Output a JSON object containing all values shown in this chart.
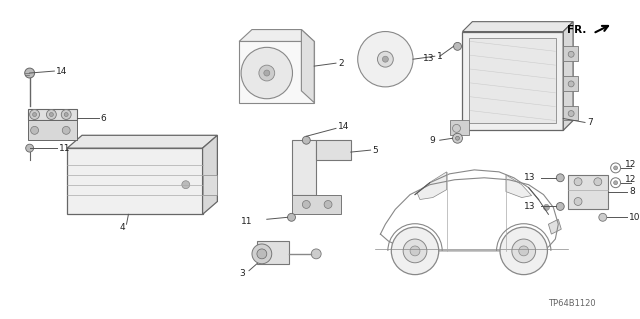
{
  "background_color": "#f5f5f0",
  "diagram_code": "TP64B1120",
  "line_color": "#555555",
  "dark_color": "#333333",
  "gray_color": "#888888",
  "light_gray": "#bbbbbb",
  "font_size": 6.5
}
